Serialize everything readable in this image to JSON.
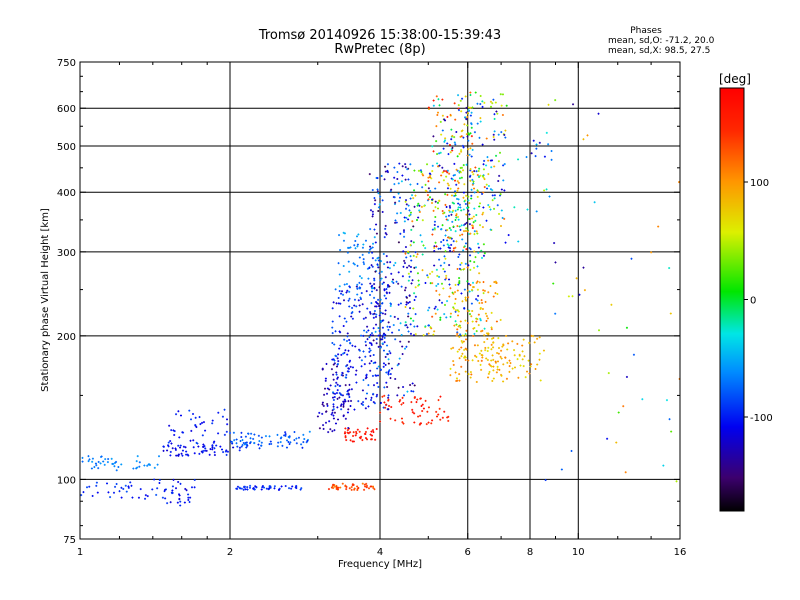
{
  "chart_data": {
    "type": "scatter",
    "title": "Tromsø 20140926 15:38:00-15:39:43",
    "subtitle": "RwPretec (8p)",
    "stats": {
      "heading": "Phases",
      "line_o": "mean, sd,O: -71.2, 20.0",
      "line_x": "mean, sd,X:  98.5, 27.5"
    },
    "xlabel": "Frequency [MHz]",
    "ylabel": "Stationary phase Virtual Height [km]",
    "x_scale": "log",
    "y_scale": "log",
    "xlim": [
      1,
      16
    ],
    "ylim": [
      75,
      750
    ],
    "x_ticks": [
      1,
      2,
      4,
      6,
      8,
      10,
      16
    ],
    "x_tick_labels": [
      "1",
      "2",
      "4",
      "6",
      "8",
      "10",
      "16"
    ],
    "y_ticks": [
      75,
      100,
      200,
      300,
      400,
      500,
      600,
      750
    ],
    "y_tick_labels": [
      "75",
      "100",
      "200",
      "300",
      "400",
      "500",
      "600",
      "750"
    ],
    "x_grid": [
      2,
      4,
      6,
      8,
      10
    ],
    "y_grid": [
      100,
      200,
      300,
      400,
      500,
      600
    ],
    "grid": true,
    "colorbar": {
      "label": "[deg]",
      "range": [
        -180,
        180
      ],
      "ticks": [
        100,
        0,
        -100
      ],
      "tick_labels": [
        "100",
        "0",
        "-100"
      ]
    },
    "clusters": [
      {
        "x": [
          1.0,
          1.45
        ],
        "y": [
          104,
          112
        ],
        "phase": [
          -75,
          -55
        ],
        "n": 45
      },
      {
        "x": [
          1.0,
          1.6
        ],
        "y": [
          91,
          99
        ],
        "phase": [
          -110,
          -80
        ],
        "n": 40
      },
      {
        "x": [
          1.45,
          2.1
        ],
        "y": [
          112,
          118
        ],
        "phase": [
          -120,
          -90
        ],
        "n": 60
      },
      {
        "x": [
          1.5,
          2.0
        ],
        "y": [
          118,
          140
        ],
        "phase": [
          -115,
          -80
        ],
        "n": 45
      },
      {
        "x": [
          1.4,
          1.7
        ],
        "y": [
          88,
          100
        ],
        "phase": [
          -120,
          -90
        ],
        "n": 30
      },
      {
        "x": [
          2.0,
          2.9
        ],
        "y": [
          116,
          126
        ],
        "phase": [
          -100,
          -60
        ],
        "n": 80
      },
      {
        "x": [
          2.05,
          2.8
        ],
        "y": [
          95,
          97
        ],
        "phase": [
          -110,
          -80
        ],
        "n": 50
      },
      {
        "x": [
          3.15,
          3.9
        ],
        "y": [
          95,
          98
        ],
        "phase": [
          110,
          150
        ],
        "n": 45
      },
      {
        "x": [
          3.4,
          3.95
        ],
        "y": [
          120,
          128
        ],
        "phase": [
          150,
          175
        ],
        "n": 40
      },
      {
        "x": [
          3.0,
          3.5
        ],
        "y": [
          125,
          175
        ],
        "phase": [
          -150,
          -105
        ],
        "n": 80
      },
      {
        "x": [
          3.2,
          4.2
        ],
        "y": [
          140,
          260
        ],
        "phase": [
          -130,
          -70
        ],
        "n": 260
      },
      {
        "x": [
          3.3,
          4.0
        ],
        "y": [
          240,
          330
        ],
        "phase": [
          -80,
          -45
        ],
        "n": 60
      },
      {
        "x": [
          3.8,
          4.7
        ],
        "y": [
          150,
          460
        ],
        "phase": [
          -160,
          -40
        ],
        "n": 230
      },
      {
        "x": [
          4.0,
          5.5
        ],
        "y": [
          130,
          150
        ],
        "phase": [
          140,
          170
        ],
        "n": 60
      },
      {
        "x": [
          4.5,
          6.5
        ],
        "y": [
          200,
          460
        ],
        "phase": [
          -130,
          130
        ],
        "n": 320
      },
      {
        "x": [
          5.0,
          6.2
        ],
        "y": [
          300,
          640
        ],
        "phase": [
          -150,
          170
        ],
        "n": 220
      },
      {
        "x": [
          5.5,
          7.0
        ],
        "y": [
          160,
          260
        ],
        "phase": [
          60,
          120
        ],
        "n": 140
      },
      {
        "x": [
          6.0,
          7.2
        ],
        "y": [
          330,
          650
        ],
        "phase": [
          -140,
          120
        ],
        "n": 120
      },
      {
        "x": [
          6.5,
          8.6
        ],
        "y": [
          160,
          200
        ],
        "phase": [
          60,
          110
        ],
        "n": 80
      },
      {
        "x": [
          7.0,
          9.0
        ],
        "y": [
          300,
          560
        ],
        "phase": [
          -130,
          -20
        ],
        "n": 25
      },
      {
        "x": [
          8.3,
          16.0
        ],
        "y": [
          90,
          650
        ],
        "phase": [
          -140,
          120
        ],
        "n": 45
      }
    ]
  }
}
